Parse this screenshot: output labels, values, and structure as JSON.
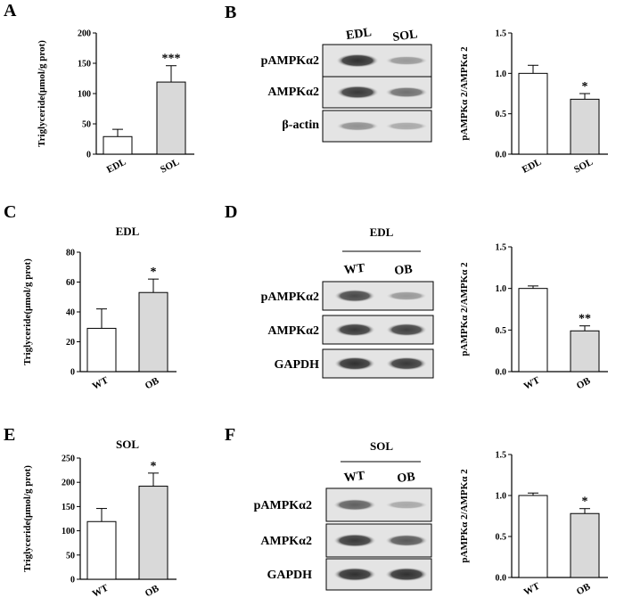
{
  "panels": {
    "A": {
      "letter": "A"
    },
    "B": {
      "letter": "B"
    },
    "C": {
      "letter": "C"
    },
    "D": {
      "letter": "D"
    },
    "E": {
      "letter": "E"
    },
    "F": {
      "letter": "F"
    }
  },
  "blots": {
    "B": {
      "lanes": [
        "EDL",
        "SOL"
      ],
      "title": "",
      "rows": [
        "pAMPKα2",
        "AMPKα2",
        "β-actin"
      ],
      "intensity": [
        [
          0.95,
          0.3
        ],
        [
          0.9,
          0.55
        ],
        [
          0.35,
          0.2
        ]
      ]
    },
    "D": {
      "lanes": [
        "WT",
        "OB"
      ],
      "title": "EDL",
      "rows": [
        "pAMPKα2",
        "AMPKα2",
        "GAPDH"
      ],
      "intensity": [
        [
          0.8,
          0.3
        ],
        [
          0.9,
          0.85
        ],
        [
          0.95,
          0.9
        ]
      ]
    },
    "F": {
      "lanes": [
        "WT",
        "OB"
      ],
      "title": "SOL",
      "rows": [
        "pAMPKα2",
        "AMPKα2",
        "GAPDH"
      ],
      "intensity": [
        [
          0.65,
          0.2
        ],
        [
          0.9,
          0.7
        ],
        [
          0.95,
          0.95
        ]
      ]
    }
  },
  "chart_data": [
    {
      "id": "A",
      "type": "bar",
      "title": "",
      "ylabel": "Triglyceride(μmol/g prot)",
      "categories": [
        "EDL",
        "SOL"
      ],
      "values": [
        29,
        119
      ],
      "errors": [
        12,
        27
      ],
      "ylim": [
        0,
        200
      ],
      "yticks": [
        0,
        50,
        100,
        150,
        200
      ],
      "tick_labels": [
        "0",
        "50",
        "100",
        "150",
        "200"
      ],
      "significance": [
        "",
        "***"
      ],
      "bar_colors": [
        "#ffffff",
        "#d9d9d9"
      ]
    },
    {
      "id": "B",
      "type": "bar",
      "title": "",
      "ylabel": "pAMPKα 2/AMPKα 2",
      "categories": [
        "EDL",
        "SOL"
      ],
      "values": [
        1.0,
        0.68
      ],
      "errors": [
        0.1,
        0.07
      ],
      "ylim": [
        0,
        1.5
      ],
      "yticks": [
        0,
        0.5,
        1.0,
        1.5
      ],
      "tick_labels": [
        "0.0",
        "0.5",
        "1.0",
        "1.5"
      ],
      "significance": [
        "",
        "*"
      ],
      "bar_colors": [
        "#ffffff",
        "#d9d9d9"
      ]
    },
    {
      "id": "C",
      "type": "bar",
      "title": "EDL",
      "ylabel": "Triglyceride(μmol/g prot)",
      "categories": [
        "WT",
        "OB"
      ],
      "values": [
        29,
        53
      ],
      "errors": [
        13,
        9
      ],
      "ylim": [
        0,
        80
      ],
      "yticks": [
        0,
        20,
        40,
        60,
        80
      ],
      "tick_labels": [
        "0",
        "20",
        "40",
        "60",
        "80"
      ],
      "significance": [
        "",
        "*"
      ],
      "bar_colors": [
        "#ffffff",
        "#d9d9d9"
      ]
    },
    {
      "id": "D",
      "type": "bar",
      "title": "",
      "ylabel": "pAMPKα 2/AMPKα 2",
      "categories": [
        "WT",
        "OB"
      ],
      "values": [
        1.0,
        0.49
      ],
      "errors": [
        0.03,
        0.06
      ],
      "ylim": [
        0,
        1.5
      ],
      "yticks": [
        0,
        0.5,
        1.0,
        1.5
      ],
      "tick_labels": [
        "0.0",
        "0.5",
        "1.0",
        "1.5"
      ],
      "significance": [
        "",
        "**"
      ],
      "bar_colors": [
        "#ffffff",
        "#d9d9d9"
      ]
    },
    {
      "id": "E",
      "type": "bar",
      "title": "SOL",
      "ylabel": "Triglyceride(μmol/g prot)",
      "categories": [
        "WT",
        "OB"
      ],
      "values": [
        119,
        192
      ],
      "errors": [
        27,
        27
      ],
      "ylim": [
        0,
        250
      ],
      "yticks": [
        0,
        50,
        100,
        150,
        200,
        250
      ],
      "tick_labels": [
        "0",
        "50",
        "100",
        "150",
        "200",
        "250"
      ],
      "significance": [
        "",
        "*"
      ],
      "bar_colors": [
        "#ffffff",
        "#d9d9d9"
      ]
    },
    {
      "id": "F",
      "type": "bar",
      "title": "",
      "ylabel": "pAMPKα 2/AMPKα 2",
      "categories": [
        "WT",
        "OB"
      ],
      "values": [
        1.0,
        0.78
      ],
      "errors": [
        0.03,
        0.06
      ],
      "ylim": [
        0,
        1.5
      ],
      "yticks": [
        0,
        0.5,
        1.0,
        1.5
      ],
      "tick_labels": [
        "0.0",
        "0.5",
        "1.0",
        "1.5"
      ],
      "significance": [
        "",
        "*"
      ],
      "bar_colors": [
        "#ffffff",
        "#d9d9d9"
      ]
    }
  ]
}
